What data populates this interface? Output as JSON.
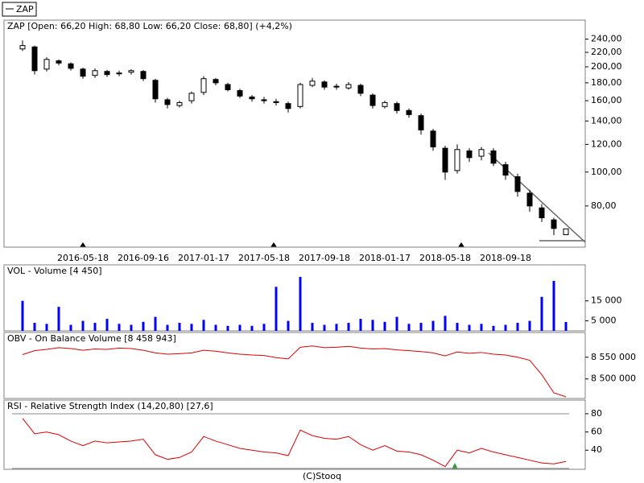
{
  "legend": "ZAP",
  "footer": "(C)Stooq",
  "chart_data": [
    {
      "type": "candlestick",
      "title": "ZAP [Open: 66,20  High: 68,80  Low: 66,20  Close: 68,80] (+4,2%)",
      "categories": [
        null,
        null,
        null,
        null,
        null,
        "2016-05-18",
        null,
        null,
        null,
        null,
        "2016-09-16",
        null,
        null,
        null,
        null,
        "2017-01-17",
        null,
        null,
        null,
        null,
        "2017-05-18",
        null,
        null,
        null,
        null,
        "2017-09-18",
        null,
        null,
        null,
        null,
        "2018-01-17",
        null,
        null,
        null,
        null,
        "2018-05-18",
        null,
        null,
        null,
        null,
        "2018-09-18",
        null,
        null,
        null,
        null,
        null
      ],
      "open": [
        225,
        228,
        197,
        208,
        204,
        197,
        189,
        194,
        191,
        193,
        194,
        183,
        161,
        155,
        160,
        169,
        184,
        178,
        171,
        164,
        161,
        159,
        157,
        154,
        177,
        181,
        176,
        174,
        177,
        166,
        154,
        157,
        150,
        145,
        131,
        117,
        101,
        115,
        111,
        115,
        105,
        97,
        87,
        79,
        73,
        66.2
      ],
      "high": [
        238,
        230,
        213,
        210,
        206,
        199,
        198,
        196,
        195,
        197,
        196,
        185,
        163,
        160,
        170,
        188,
        186,
        180,
        173,
        166,
        164,
        162,
        159,
        180,
        186,
        183,
        179,
        181,
        179,
        168,
        160,
        159,
        152,
        147,
        133,
        119,
        120,
        117,
        118,
        117,
        107,
        99,
        89,
        81,
        74,
        68.8
      ],
      "low": [
        222,
        190,
        194,
        202,
        195,
        185,
        186,
        187,
        188,
        190,
        182,
        158,
        152,
        153,
        157,
        166,
        177,
        170,
        163,
        159,
        157,
        155,
        148,
        152,
        175,
        172,
        172,
        172,
        165,
        152,
        152,
        147,
        143,
        128,
        115,
        95,
        99,
        107,
        108,
        104,
        95,
        85,
        77,
        72,
        66,
        66.2
      ],
      "close": [
        230,
        195,
        210,
        205,
        198,
        188,
        195,
        190,
        192,
        195,
        185,
        162,
        156,
        158,
        168,
        185,
        180,
        172,
        165,
        162,
        160,
        158,
        152,
        178,
        182,
        175,
        175,
        178,
        168,
        155,
        158,
        150,
        146,
        132,
        118,
        100,
        116,
        110,
        116,
        106,
        98,
        88,
        80,
        74,
        69,
        68.8
      ],
      "colors": {
        "up": "#ffffff",
        "down": "#000000"
      },
      "log_scale": true,
      "ylim": [
        61,
        272
      ],
      "yticks": [
        {
          "value": 80,
          "label": "80,00"
        },
        {
          "value": 100,
          "label": "100,00"
        },
        {
          "value": 120,
          "label": "120,00"
        },
        {
          "value": 140,
          "label": "140,00"
        },
        {
          "value": 160,
          "label": "160,00"
        },
        {
          "value": 180,
          "label": "180,00"
        },
        {
          "value": 200,
          "label": "200,00"
        },
        {
          "value": 220,
          "label": "220,00"
        },
        {
          "value": 240,
          "label": "240,00"
        }
      ]
    },
    {
      "type": "bar",
      "title": "VOL - Volume [4 450]",
      "color": "#0000ff",
      "values": [
        15000,
        4000,
        3500,
        12000,
        3000,
        5000,
        4000,
        6000,
        3500,
        3000,
        4500,
        7000,
        3000,
        4000,
        3500,
        5500,
        3000,
        2500,
        3000,
        2500,
        3500,
        22000,
        5000,
        27000,
        4000,
        3000,
        3500,
        4000,
        6000,
        5500,
        4500,
        7000,
        3500,
        4000,
        5000,
        7500,
        4000,
        3000,
        3500,
        2500,
        3000,
        4000,
        5000,
        17000,
        25000,
        4450
      ],
      "ylim": [
        0,
        33000
      ],
      "yticks": [
        {
          "value": 5000,
          "label": "5 000"
        },
        {
          "value": 15000,
          "label": "15 000"
        }
      ]
    },
    {
      "type": "line",
      "title": "OBV - On Balance Volume [8 458 943]",
      "color": "#e00000",
      "values": [
        8556000,
        8565000,
        8568000,
        8572000,
        8570000,
        8566000,
        8569000,
        8568000,
        8571000,
        8570000,
        8566000,
        8560000,
        8557000,
        8558000,
        8560000,
        8566000,
        8564000,
        8560000,
        8557000,
        8555000,
        8554000,
        8549000,
        8546000,
        8573000,
        8576000,
        8572000,
        8573000,
        8575000,
        8571000,
        8569000,
        8570000,
        8567000,
        8565000,
        8563000,
        8560000,
        8553000,
        8562000,
        8559000,
        8561000,
        8557000,
        8555000,
        8550000,
        8543000,
        8510000,
        8468000,
        8458943
      ],
      "ylim": [
        8455000,
        8607000
      ],
      "yticks": [
        {
          "value": 8500000,
          "label": "8 500 000"
        },
        {
          "value": 8550000,
          "label": "8 550 000"
        }
      ]
    },
    {
      "type": "line",
      "title": "RSI - Relative Strength Index (14,20,80) [27,6]",
      "color": "#e00000",
      "values": [
        75,
        58,
        60,
        57,
        50,
        45,
        50,
        48,
        49,
        50,
        52,
        35,
        30,
        32,
        38,
        55,
        50,
        46,
        42,
        40,
        38,
        37,
        34,
        62,
        56,
        53,
        52,
        55,
        46,
        40,
        45,
        39,
        38,
        35,
        29,
        22,
        40,
        37,
        42,
        38,
        35,
        32,
        29,
        26,
        25,
        27.6
      ],
      "levels": [
        20,
        80
      ],
      "ylim": [
        19,
        95
      ],
      "yticks": [
        40,
        60,
        80
      ]
    }
  ]
}
